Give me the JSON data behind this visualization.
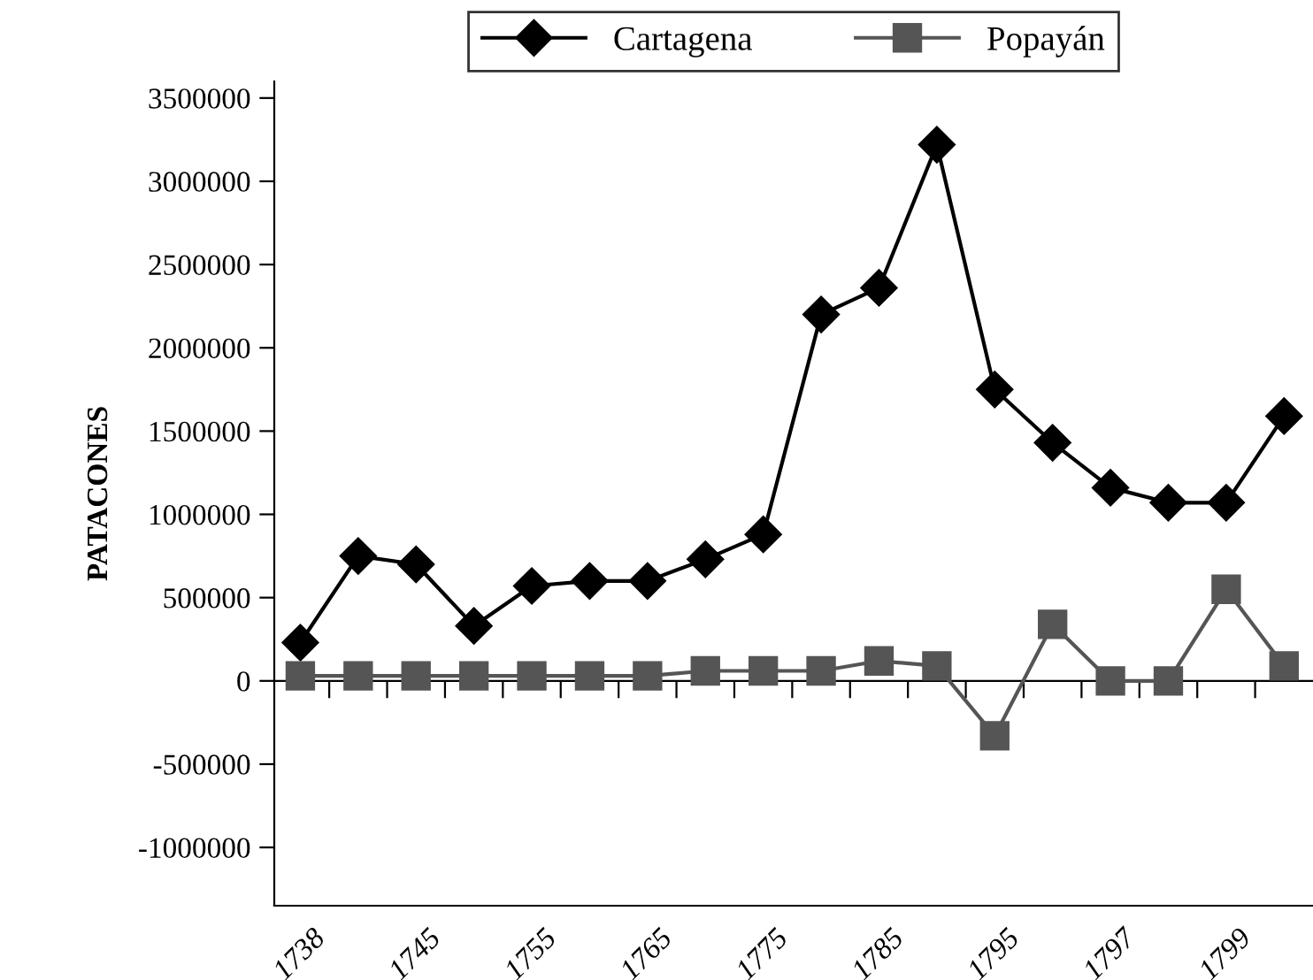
{
  "chart_data": {
    "type": "line",
    "ylabel": "PATACONES",
    "categories": [
      "1738",
      null,
      "1745",
      null,
      "1755",
      null,
      "1765",
      null,
      "1775",
      null,
      "1785",
      null,
      "1795",
      null,
      "1797",
      null,
      "1799",
      null
    ],
    "series": [
      {
        "name": "Cartagena",
        "color": "#000000",
        "marker": "diamond",
        "values": [
          230000,
          750000,
          700000,
          330000,
          570000,
          600000,
          600000,
          730000,
          880000,
          2200000,
          2360000,
          3220000,
          1750000,
          1430000,
          1160000,
          1070000,
          1070000,
          1590000
        ]
      },
      {
        "name": "Popayán",
        "color": "#555555",
        "marker": "square",
        "values": [
          30000,
          30000,
          30000,
          30000,
          30000,
          30000,
          30000,
          60000,
          60000,
          60000,
          120000,
          90000,
          -330000,
          340000,
          0,
          0,
          550000,
          90000
        ]
      }
    ],
    "ylim": [
      -1350000,
      3600000
    ],
    "yticks": [
      -1000000,
      -500000,
      0,
      500000,
      1000000,
      1500000,
      2000000,
      2500000,
      3000000,
      3500000
    ],
    "legend": "top",
    "line_style": "solid"
  }
}
